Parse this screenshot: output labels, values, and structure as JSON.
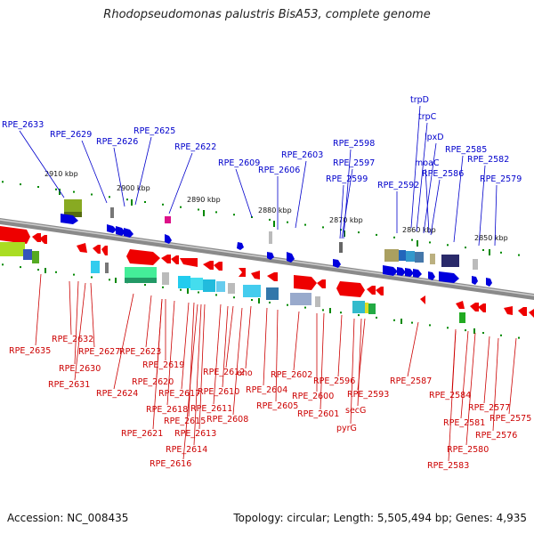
{
  "title": "Rhodopseudomonas palustris BisA53, complete genome",
  "footer": {
    "accession": "Accession: NC_008435",
    "summary": "Topology: circular; Length: 5,505,494 bp; Genes: 4,935"
  },
  "colors": {
    "top_labels": "#0000cc",
    "bottom_labels": "#cc0000",
    "backbone": "#777777",
    "ticks": "#008800"
  },
  "scale_labels": [
    "2910 kbp",
    "2900 kbp",
    "2890 kbp",
    "2880 kbp",
    "2870 kbp",
    "2860 kbp",
    "2850 kbp"
  ],
  "top_genes": [
    "RPE_2633",
    "RPE_2629",
    "RPE_2626",
    "RPE_2625",
    "RPE_2622",
    "RPE_2609",
    "RPE_2606",
    "RPE_2603",
    "RPE_2598",
    "RPE_2597",
    "RPE_2599",
    "RPE_2592",
    "trpD",
    "trpC",
    "lpxD",
    "moaC",
    "RPE_2586",
    "RPE_2585",
    "RPE_2582",
    "RPE_2579"
  ],
  "bottom_genes": [
    "RPE_2635",
    "RPE_2632",
    "RPE_2627",
    "RPE_2630",
    "RPE_2631",
    "RPE_2624",
    "RPE_2623",
    "RPE_2619",
    "RPE_2620",
    "RPE_2618",
    "RPE_2617",
    "RPE_2621",
    "RPE_2615",
    "RPE_2613",
    "RPE_2614",
    "RPE_2616",
    "RPE_2612",
    "RPE_2611",
    "RPE_2610",
    "RPE_2608",
    "eno",
    "RPE_2604",
    "RPE_2605",
    "RPE_2602",
    "RPE_2600",
    "RPE_2601",
    "RPE_2596",
    "RPE_2593",
    "secG",
    "pyrG",
    "RPE_2587",
    "RPE_2584",
    "RPE_2581",
    "RPE_2583",
    "RPE_2580",
    "RPE_2577",
    "RPE_2576",
    "RPE_2575"
  ]
}
